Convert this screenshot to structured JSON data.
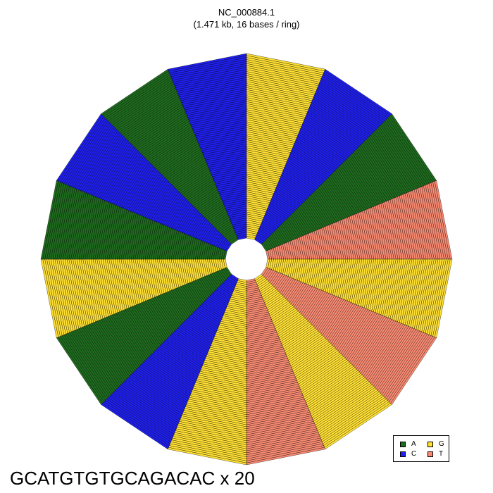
{
  "chart_data": {
    "type": "radial-sequence",
    "title": "NC_000884.1",
    "subtitle": "(1.471 kb, 16 bases / ring)",
    "motif": "GCATGTGTGCAGACAC",
    "repeat_caption": "GCATGTGTGCAGACAC x 20",
    "bases_per_ring": 16,
    "legend": [
      {
        "base": "A",
        "color": "#1E6B1E"
      },
      {
        "base": "C",
        "color": "#1F1FEF"
      },
      {
        "base": "G",
        "color": "#FFE033"
      },
      {
        "base": "T",
        "color": "#F98A72"
      }
    ],
    "legend_position": "bottom-right"
  }
}
